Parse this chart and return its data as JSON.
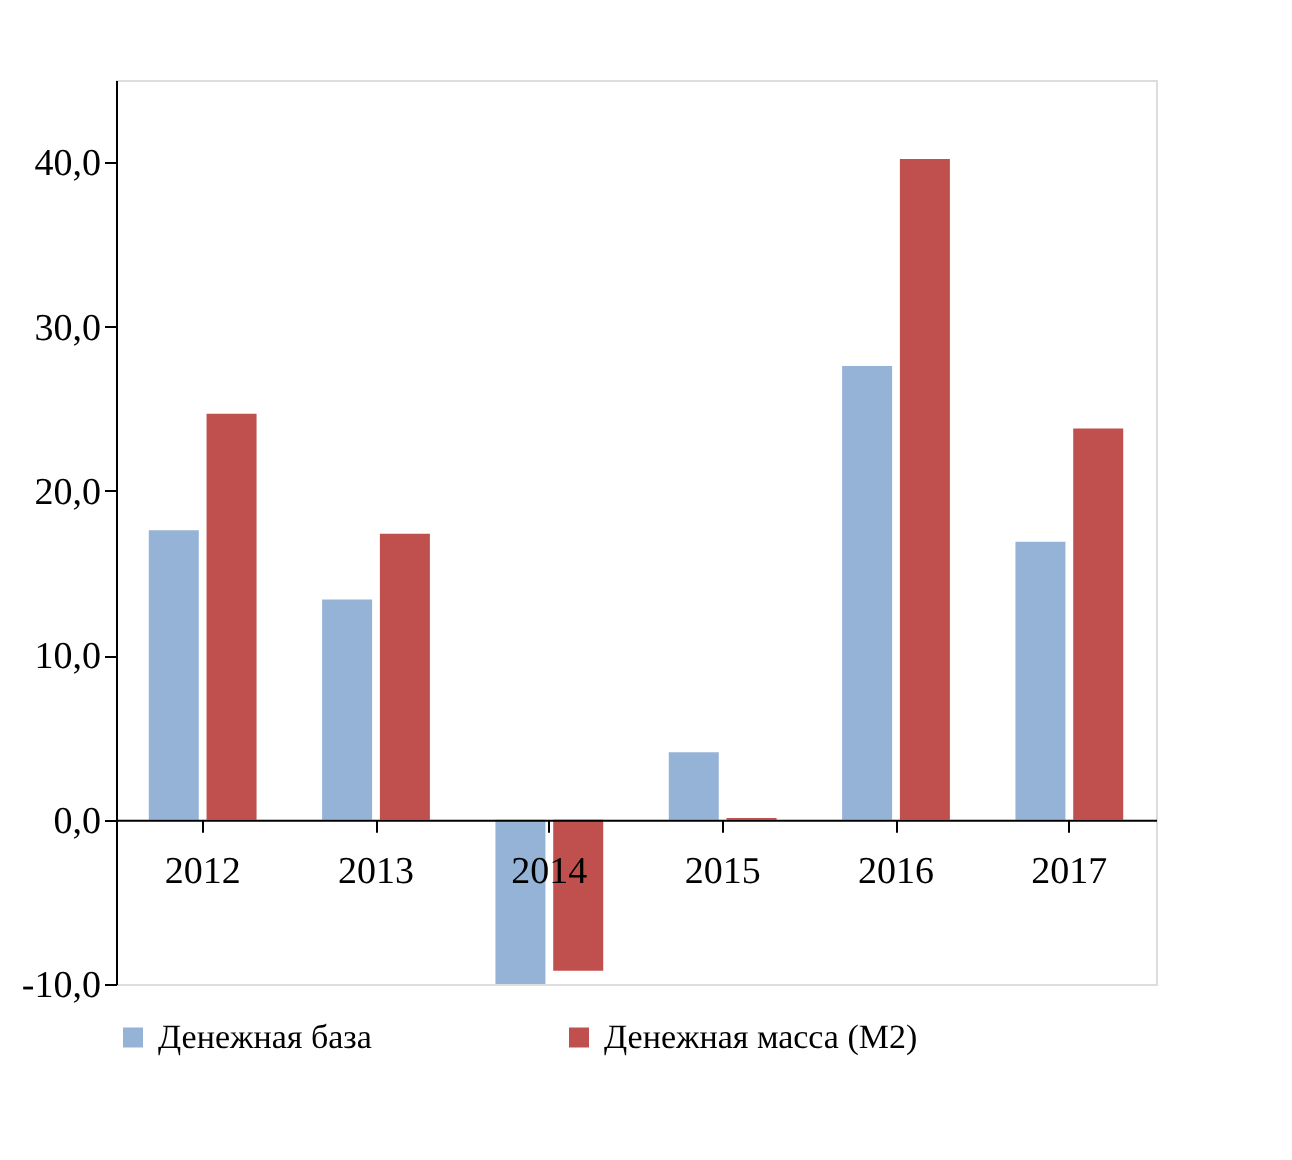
{
  "chart_data": {
    "type": "bar",
    "categories": [
      "2012",
      "2013",
      "2014",
      "2015",
      "2016",
      "2017"
    ],
    "series": [
      {
        "name": "Денежная  база",
        "color": "#95b3d7",
        "values": [
          17.6,
          13.4,
          -10.0,
          4.1,
          27.6,
          16.9
        ]
      },
      {
        "name": "Денежная  масса  (М2)",
        "color": "#c0504d",
        "values": [
          24.7,
          17.4,
          -9.2,
          0.1,
          40.2,
          23.8
        ]
      }
    ],
    "ylim": [
      -10,
      45
    ],
    "yticks": [
      {
        "value": -10,
        "label": "-10,0"
      },
      {
        "value": 0,
        "label": "0,0"
      },
      {
        "value": 10,
        "label": "10,0"
      },
      {
        "value": 20,
        "label": "20,0"
      },
      {
        "value": 30,
        "label": "30,0"
      },
      {
        "value": 40,
        "label": "40,0"
      }
    ],
    "grid": false,
    "legend": "bottom"
  }
}
